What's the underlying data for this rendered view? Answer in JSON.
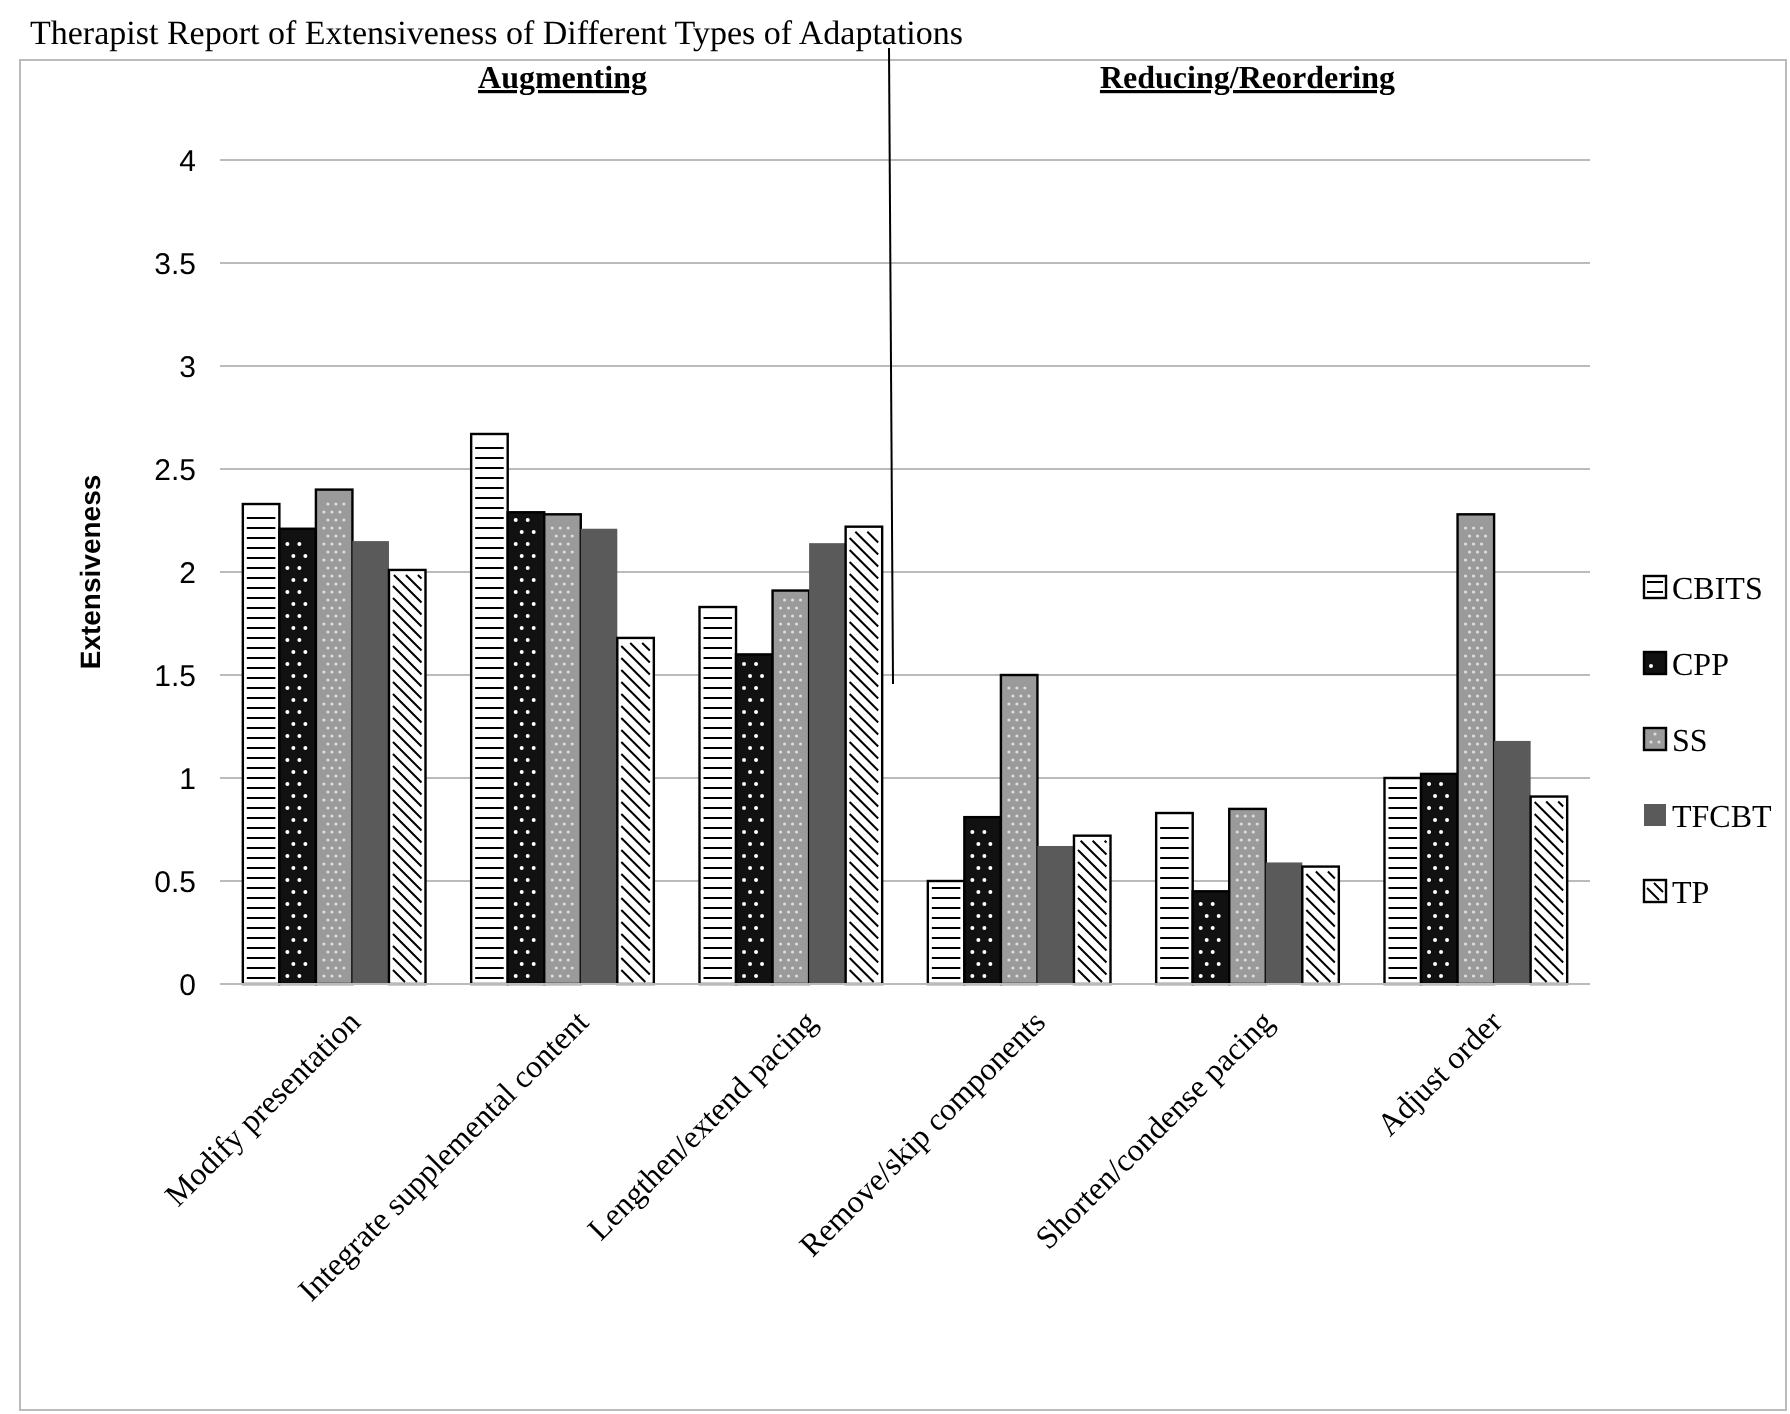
{
  "chart_data": {
    "type": "bar",
    "title": "Therapist Report of Extensiveness of Different Types of Adaptations",
    "ylabel": "Extensiveness",
    "annotations": [
      "Augmenting",
      "Reducing/Reordering"
    ],
    "categories": [
      "Modify presentation",
      "Integrate supplemental content",
      "Lengthen/extend pacing",
      "Remove/skip components",
      "Shorten/condense pacing",
      "Adjust order"
    ],
    "series": [
      {
        "name": "CBITS",
        "color": "#ffffff",
        "values": [
          2.33,
          2.67,
          1.83,
          0.5,
          0.83,
          1.0
        ]
      },
      {
        "name": "CPP",
        "color": "#111111",
        "values": [
          2.21,
          2.29,
          1.6,
          0.81,
          0.45,
          1.02
        ]
      },
      {
        "name": "SS",
        "color": "#9a9a9a",
        "values": [
          2.4,
          2.28,
          1.91,
          1.5,
          0.85,
          2.28
        ]
      },
      {
        "name": "TFCBT",
        "color": "#5a5a5a",
        "values": [
          2.15,
          2.21,
          2.14,
          0.67,
          0.59,
          1.18
        ]
      },
      {
        "name": "TP",
        "color": "#ffffff",
        "values": [
          2.01,
          1.68,
          2.22,
          0.72,
          0.57,
          0.91
        ]
      }
    ],
    "ylim": [
      0,
      4
    ],
    "yticks": [
      0,
      0.5,
      1,
      1.5,
      2,
      2.5,
      3,
      3.5,
      4
    ],
    "grid": "y",
    "legend": "right"
  }
}
